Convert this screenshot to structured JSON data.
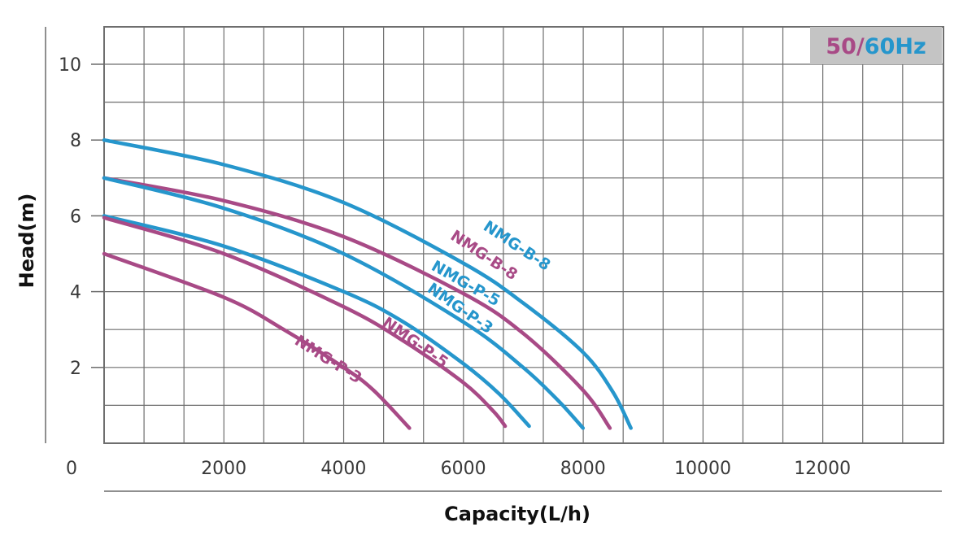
{
  "chart_data": {
    "type": "line",
    "xlabel": "Capacity(L/h)",
    "ylabel": "Head(m)",
    "xlim": [
      0,
      14000
    ],
    "ylim": [
      0,
      11
    ],
    "grid": true,
    "x_ticks": [
      0,
      2000,
      4000,
      6000,
      8000,
      10000,
      12000
    ],
    "y_ticks": [
      2,
      4,
      6,
      8,
      10
    ],
    "frequency_badge": {
      "part_a": "50",
      "separator": "/",
      "part_b": "60Hz"
    },
    "colors": {
      "50Hz": "#a84a86",
      "60Hz": "#2696cc",
      "grid": "#6e6e6e",
      "badge_bg": "#c4c4c4"
    },
    "series": [
      {
        "name": "NMG-B-8",
        "frequency": "60Hz",
        "x": [
          0,
          2000,
          4000,
          6000,
          7000,
          8000,
          8500,
          8800
        ],
        "y": [
          8.0,
          7.35,
          6.35,
          4.75,
          3.7,
          2.4,
          1.35,
          0.4
        ]
      },
      {
        "name": "NMG-B-8",
        "frequency": "50Hz",
        "x": [
          0,
          2000,
          4000,
          6000,
          7000,
          8000,
          8450
        ],
        "y": [
          7.0,
          6.4,
          5.45,
          3.95,
          2.9,
          1.4,
          0.4
        ]
      },
      {
        "name": "NMG-P-5",
        "frequency": "60Hz",
        "x": [
          0,
          2000,
          4000,
          6000,
          7000,
          7600,
          8000
        ],
        "y": [
          7.0,
          6.2,
          5.0,
          3.2,
          2.0,
          1.1,
          0.4
        ]
      },
      {
        "name": "NMG-P-3",
        "frequency": "60Hz",
        "x": [
          0,
          2000,
          4000,
          5000,
          6000,
          6600,
          7100
        ],
        "y": [
          6.0,
          5.2,
          4.0,
          3.2,
          2.1,
          1.3,
          0.45
        ]
      },
      {
        "name": "NMG-P-5",
        "frequency": "50Hz",
        "x": [
          0,
          2000,
          4000,
          5000,
          6000,
          6500,
          6700
        ],
        "y": [
          5.95,
          5.0,
          3.6,
          2.7,
          1.6,
          0.85,
          0.45
        ]
      },
      {
        "name": "NMG-P-3",
        "frequency": "50Hz",
        "x": [
          0,
          2000,
          3000,
          4000,
          4500,
          5100
        ],
        "y": [
          5.0,
          3.85,
          3.0,
          2.0,
          1.4,
          0.4
        ]
      }
    ],
    "labels": [
      {
        "text": "NMG-B-8",
        "series_index": 0,
        "at_x": 6850,
        "at_y": 5.1
      },
      {
        "text": "NMG-B-8",
        "series_index": 1,
        "at_x": 6300,
        "at_y": 4.85
      },
      {
        "text": "NMG-P-5",
        "series_index": 2,
        "at_x": 6000,
        "at_y": 4.1
      },
      {
        "text": "NMG-P-3",
        "series_index": 3,
        "at_x": 5900,
        "at_y": 3.45
      },
      {
        "text": "NMG-P-5",
        "series_index": 4,
        "at_x": 5150,
        "at_y": 2.55
      },
      {
        "text": "NMG-P-3",
        "series_index": 5,
        "at_x": 3700,
        "at_y": 2.1
      }
    ]
  }
}
